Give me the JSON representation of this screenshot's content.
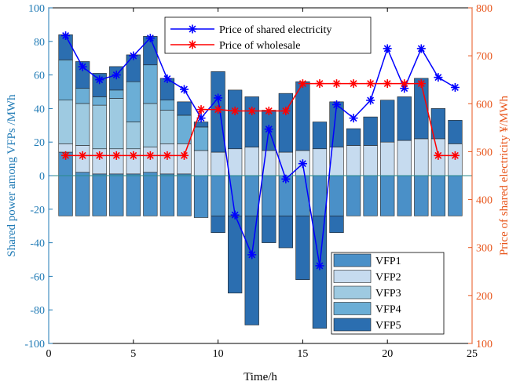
{
  "chart_data": {
    "type": "bar",
    "title": "",
    "xlabel": "Time/h",
    "ylabel_left": "Shared power among VFPs /MWh",
    "ylabel_right": "Price of shared electricity ¥/MWh",
    "xlim": [
      0,
      25
    ],
    "ylim_left": [
      -100,
      100
    ],
    "ylim_right": [
      100,
      800
    ],
    "xticks": [
      "0",
      "5",
      "10",
      "15",
      "20",
      "25"
    ],
    "yticks_left": [
      "-100",
      "-80",
      "-60",
      "-40",
      "-20",
      "0",
      "20",
      "40",
      "60",
      "80",
      "100"
    ],
    "yticks_right": [
      "100",
      "200",
      "300",
      "400",
      "500",
      "600",
      "700",
      "800"
    ],
    "hours": [
      1,
      2,
      3,
      4,
      5,
      6,
      7,
      8,
      9,
      10,
      11,
      12,
      13,
      14,
      15,
      16,
      17,
      18,
      19,
      20,
      21,
      22,
      23,
      24
    ],
    "bar_series": [
      {
        "name": "VFP1",
        "color": "#4a90c8",
        "values": [
          14,
          2,
          1,
          1,
          1,
          2,
          1,
          1,
          0,
          0,
          0,
          0,
          0,
          0,
          0,
          0,
          0,
          0,
          0,
          0,
          0,
          0,
          0,
          0
        ]
      },
      {
        "name": "VFP2",
        "color": "#c6dbef",
        "values": [
          5,
          16,
          15,
          15,
          15,
          15,
          18,
          18,
          15,
          14,
          16,
          17,
          15,
          14,
          15,
          16,
          17,
          18,
          18,
          20,
          21,
          22,
          22,
          19
        ]
      },
      {
        "name": "VFP3",
        "color": "#9ecae1",
        "values": [
          26,
          25,
          26,
          30,
          16,
          26,
          20,
          0,
          0,
          0,
          0,
          0,
          0,
          0,
          0,
          0,
          0,
          0,
          0,
          0,
          0,
          0,
          0,
          0
        ]
      },
      {
        "name": "VFP4",
        "color": "#6baed6",
        "values": [
          24,
          9,
          5,
          5,
          24,
          23,
          6,
          17,
          14,
          0,
          0,
          0,
          0,
          0,
          0,
          0,
          0,
          0,
          0,
          0,
          0,
          0,
          0,
          0
        ]
      },
      {
        "name": "VFP5",
        "color": "#2b6eb0",
        "values": [
          15,
          16,
          14,
          14,
          16,
          17,
          13,
          8,
          3,
          48,
          35,
          30,
          24,
          35,
          41,
          16,
          27,
          10,
          17,
          25,
          26,
          36,
          18,
          14
        ]
      }
    ],
    "negative_values": {
      "VFP1": [
        -24,
        -24,
        -24,
        -24,
        -24,
        -24,
        -24,
        -24,
        -25,
        -24,
        -24,
        -24,
        -24,
        -24,
        -24,
        -24,
        -24,
        -24,
        -24,
        -24,
        -24,
        -24,
        -24,
        -24
      ],
      "VFP5": [
        0,
        0,
        0,
        0,
        0,
        0,
        0,
        0,
        0,
        -10,
        -46,
        -65,
        -16,
        -19,
        -38,
        -67,
        -10,
        0,
        0,
        0,
        0,
        0,
        0,
        0
      ]
    },
    "line_series": [
      {
        "name": "Price of shared electricity",
        "color": "#0000ff",
        "marker": "asterisk",
        "values": [
          742,
          677,
          650,
          660,
          700,
          737,
          652,
          630,
          570,
          612,
          368,
          285,
          547,
          443,
          475,
          262,
          598,
          570,
          607,
          715,
          632,
          715,
          655,
          634
        ]
      },
      {
        "name": "Price of wholesale",
        "color": "#ff0000",
        "marker": "asterisk",
        "values": [
          492,
          492,
          492,
          492,
          492,
          492,
          492,
          492,
          588,
          588,
          585,
          585,
          585,
          585,
          642,
          642,
          642,
          642,
          642,
          642,
          642,
          642,
          492,
          492
        ]
      }
    ],
    "legend_lines_position": "top-center",
    "legend_bars_position": "bottom-right",
    "grid": false
  }
}
